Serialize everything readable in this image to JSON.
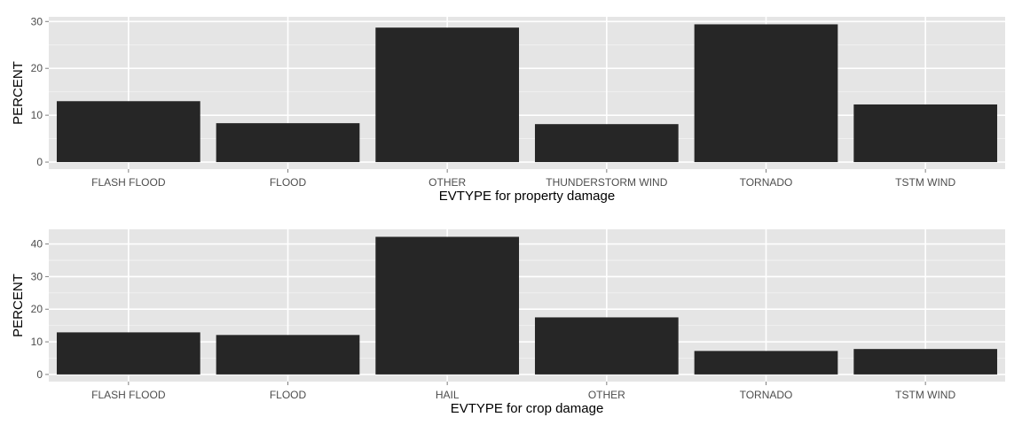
{
  "chart_data": [
    {
      "type": "bar",
      "categories": [
        "FLASH FLOOD",
        "FLOOD",
        "OTHER",
        "THUNDERSTORM WIND",
        "TORNADO",
        "TSTM WIND"
      ],
      "values": [
        13.0,
        8.3,
        28.7,
        8.1,
        29.4,
        12.3
      ],
      "xlabel": "EVTYPE for property damage",
      "ylabel": "PERCENT",
      "ylim": [
        -1.5,
        31.0
      ],
      "yticks": [
        0,
        10,
        20,
        30
      ],
      "grid": true,
      "legend": "none"
    },
    {
      "type": "bar",
      "categories": [
        "FLASH FLOOD",
        "FLOOD",
        "HAIL",
        "OTHER",
        "TORNADO",
        "TSTM WIND"
      ],
      "values": [
        12.9,
        12.1,
        42.2,
        17.5,
        7.2,
        7.8
      ],
      "xlabel": "EVTYPE for crop damage",
      "ylabel": "PERCENT",
      "ylim": [
        -2.2,
        44.5
      ],
      "yticks": [
        0,
        10,
        20,
        30,
        40
      ],
      "grid": true,
      "legend": "none"
    }
  ],
  "colors": {
    "panel_background": "#e5e5e5",
    "grid_major": "#ffffff",
    "grid_minor": "#f2f2f2",
    "bar_fill": "#262626",
    "tick_label": "#4d4d4d",
    "tick_mark": "#7f7f7f",
    "axis_title": "#000000"
  }
}
